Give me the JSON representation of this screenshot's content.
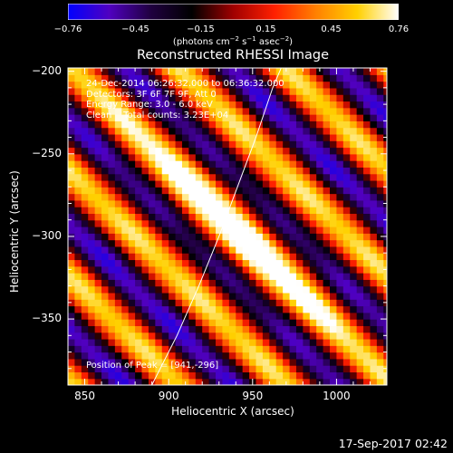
{
  "chart_data": {
    "type": "heatmap",
    "title": "Reconstructed RHESSI Image",
    "xlabel": "Heliocentric X (arcsec)",
    "ylabel": "Heliocentric Y (arcsec)",
    "xlim": [
      840,
      1030
    ],
    "ylim": [
      -390,
      -198
    ],
    "x_ticks": [
      850,
      900,
      950,
      1000
    ],
    "x_tick_labels": [
      "850",
      "900",
      "950",
      "1000"
    ],
    "y_ticks": [
      -200,
      -250,
      -300,
      -350
    ],
    "y_tick_labels": [
      "−200",
      "−250",
      "−300",
      "−350"
    ],
    "colorbar": {
      "range": [
        -0.76,
        0.76
      ],
      "tick_labels": [
        "−0.76",
        "−0.45",
        "−0.15",
        "0.15",
        "0.45",
        "0.76"
      ],
      "tick_values": [
        -0.76,
        -0.45,
        -0.15,
        0.15,
        0.45,
        0.76
      ],
      "units_text": "(photons cm",
      "units_parts": [
        "(photons cm",
        "−2",
        " s",
        "−1",
        " asec",
        "−2",
        ")"
      ],
      "colors": [
        "#0000ff",
        "#5000c0",
        "#200040",
        "#000000",
        "#a00000",
        "#ff2000",
        "#ff8000",
        "#ffd000",
        "#ffffff"
      ]
    },
    "annotations": [
      "24-Dec-2014 06:26:32.000 to 06:36:32.000",
      "Detectors: 3F 6F 7F 9F, Att 0",
      "Energy Range: 3.0 - 6.0 keV",
      "Clean    Total counts: 3.23E+04"
    ],
    "peak_label": "Position of Peak = [941,-296]",
    "peak": [
      941,
      -296
    ],
    "limb_curve": [
      [
        890,
        -390
      ],
      [
        905,
        -360
      ],
      [
        918,
        -330
      ],
      [
        930,
        -300
      ],
      [
        941,
        -270
      ],
      [
        952,
        -240
      ],
      [
        962,
        -210
      ],
      [
        967,
        -198
      ]
    ]
  },
  "timestamp": "17-Sep-2017 02:42"
}
